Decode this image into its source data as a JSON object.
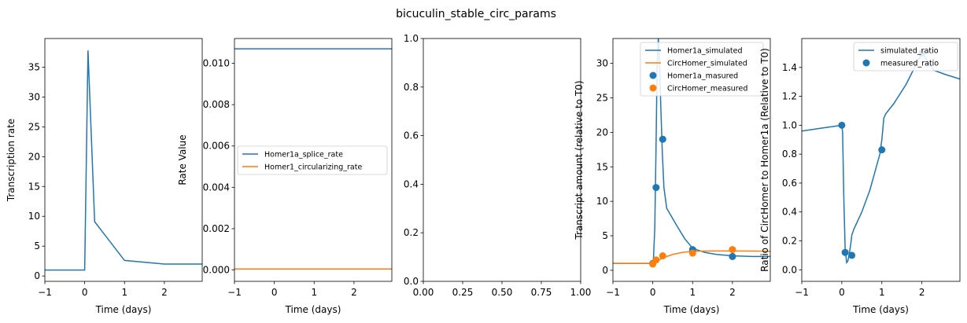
{
  "figure_title": "bicuculin_stable_circ_params",
  "colors": {
    "blue": "#1f77b4",
    "orange": "#ff7f0e"
  },
  "chart_data": [
    {
      "type": "line",
      "xlabel": "Time (days)",
      "ylabel": "Transcription rate",
      "xlim": [
        -1,
        2.95
      ],
      "ylim": [
        -0.9,
        39.8
      ],
      "xticks": [
        -1,
        0,
        1,
        2
      ],
      "yticks": [
        0,
        5,
        10,
        15,
        20,
        25,
        30,
        35
      ],
      "series": [
        {
          "color": "#1f77b4",
          "x": [
            -1,
            0,
            0.083,
            0.25,
            1,
            2,
            2.95
          ],
          "y": [
            1,
            1,
            37.8,
            9.1,
            2.6,
            2,
            2
          ]
        }
      ]
    },
    {
      "type": "line",
      "xlabel": "Time (days)",
      "ylabel": "Rate Value",
      "xlim": [
        -1,
        2.95
      ],
      "ylim": [
        -0.00055,
        0.0112
      ],
      "xticks": [
        -1,
        0,
        1,
        2
      ],
      "yticks": [
        0.0,
        0.002,
        0.004,
        0.006,
        0.008,
        0.01
      ],
      "ytick_labels": [
        "0.000",
        "0.002",
        "0.004",
        "0.006",
        "0.008",
        "0.010"
      ],
      "legend": "center",
      "series": [
        {
          "name": "Homer1a_splice_rate",
          "color": "#1f77b4",
          "x": [
            -1,
            2.95
          ],
          "y": [
            0.0107,
            0.0107
          ]
        },
        {
          "name": "Homer1_circularizing_rate",
          "color": "#ff7f0e",
          "x": [
            -1,
            2.95
          ],
          "y": [
            5e-05,
            5e-05
          ]
        }
      ]
    },
    {
      "type": "line",
      "xlabel": "",
      "ylabel": "",
      "xlim": [
        0,
        1
      ],
      "ylim": [
        0,
        1
      ],
      "xticks": [
        0,
        0.25,
        0.5,
        0.75,
        1
      ],
      "xtick_labels": [
        "0.00",
        "0.25",
        "0.50",
        "0.75",
        "1.00"
      ],
      "yticks": [
        0,
        0.2,
        0.4,
        0.6,
        0.8,
        1
      ],
      "ytick_labels": [
        "0.0",
        "0.2",
        "0.4",
        "0.6",
        "0.8",
        "1.0"
      ],
      "series": []
    },
    {
      "type": "line",
      "xlabel": "Time (days)",
      "ylabel": "Transcript amount (relative to T0)",
      "xlim": [
        -1,
        2.95
      ],
      "ylim": [
        -1.6,
        33.6
      ],
      "xticks": [
        -1,
        0,
        1,
        2
      ],
      "yticks": [
        0,
        5,
        10,
        15,
        20,
        25,
        30
      ],
      "legend": "top-right",
      "series": [
        {
          "name": "Homer1a_simulated",
          "color": "#1f77b4",
          "kind": "line",
          "x": [
            -1,
            0,
            0.02,
            0.05,
            0.08,
            0.11,
            0.14,
            0.17,
            0.2,
            0.24,
            0.28,
            0.35,
            0.45,
            0.6,
            0.8,
            1.0,
            1.3,
            1.6,
            2.0,
            2.5,
            2.95
          ],
          "y": [
            1,
            1,
            2.0,
            6.0,
            17.0,
            30.0,
            33.6,
            30.0,
            24.0,
            17.0,
            12.0,
            9.0,
            8.0,
            6.5,
            4.6,
            3.2,
            2.6,
            2.3,
            2.1,
            2.0,
            2.0
          ]
        },
        {
          "name": "CircHomer_simulated",
          "color": "#ff7f0e",
          "kind": "line",
          "x": [
            -1,
            0,
            0.1,
            0.25,
            0.5,
            0.75,
            1.0,
            1.5,
            2.0,
            2.5,
            2.95
          ],
          "y": [
            1,
            1,
            1.3,
            1.8,
            2.3,
            2.6,
            2.75,
            2.8,
            2.8,
            2.78,
            2.75
          ]
        },
        {
          "name": "Homer1a_masured",
          "color": "#1f77b4",
          "kind": "scatter",
          "x": [
            0,
            0.083,
            0.25,
            1,
            2
          ],
          "y": [
            1,
            12,
            19,
            3,
            2
          ]
        },
        {
          "name": "CircHomer_measured",
          "color": "#ff7f0e",
          "kind": "scatter",
          "x": [
            0,
            0.083,
            0.25,
            1,
            2
          ],
          "y": [
            0.9,
            1.5,
            2.1,
            2.5,
            3.0
          ]
        }
      ]
    },
    {
      "type": "line",
      "xlabel": "Time (days)",
      "ylabel": "Ratio of CircHomer to Homer1a (Relative to T0)",
      "xlim": [
        -1,
        2.95
      ],
      "ylim": [
        -0.08,
        1.6
      ],
      "xticks": [
        -1,
        0,
        1,
        2
      ],
      "yticks": [
        0.0,
        0.2,
        0.4,
        0.6,
        0.8,
        1.0,
        1.2,
        1.4
      ],
      "ytick_labels": [
        "0.0",
        "0.2",
        "0.4",
        "0.6",
        "0.8",
        "1.0",
        "1.2",
        "1.4"
      ],
      "legend": "top-right",
      "series": [
        {
          "name": "simulated_ratio",
          "color": "#1f77b4",
          "kind": "line",
          "x": [
            -1,
            -0.5,
            0,
            0.02,
            0.05,
            0.083,
            0.12,
            0.15,
            0.18,
            0.22,
            0.25,
            0.3,
            0.5,
            0.7,
            0.85,
            0.95,
            1.0,
            1.05,
            1.1,
            1.3,
            1.6,
            2.0,
            2.3,
            2.6,
            2.95
          ],
          "y": [
            0.96,
            0.98,
            1.0,
            0.95,
            0.5,
            0.15,
            0.05,
            0.06,
            0.1,
            0.17,
            0.24,
            0.28,
            0.4,
            0.55,
            0.7,
            0.8,
            0.9,
            1.05,
            1.08,
            1.15,
            1.28,
            1.5,
            1.38,
            1.35,
            1.32
          ]
        },
        {
          "name": "measured_ratio",
          "color": "#1f77b4",
          "kind": "scatter",
          "x": [
            0,
            0.083,
            0.25,
            1,
            2
          ],
          "y": [
            1.0,
            0.12,
            0.1,
            0.83,
            1.5
          ]
        }
      ]
    }
  ]
}
